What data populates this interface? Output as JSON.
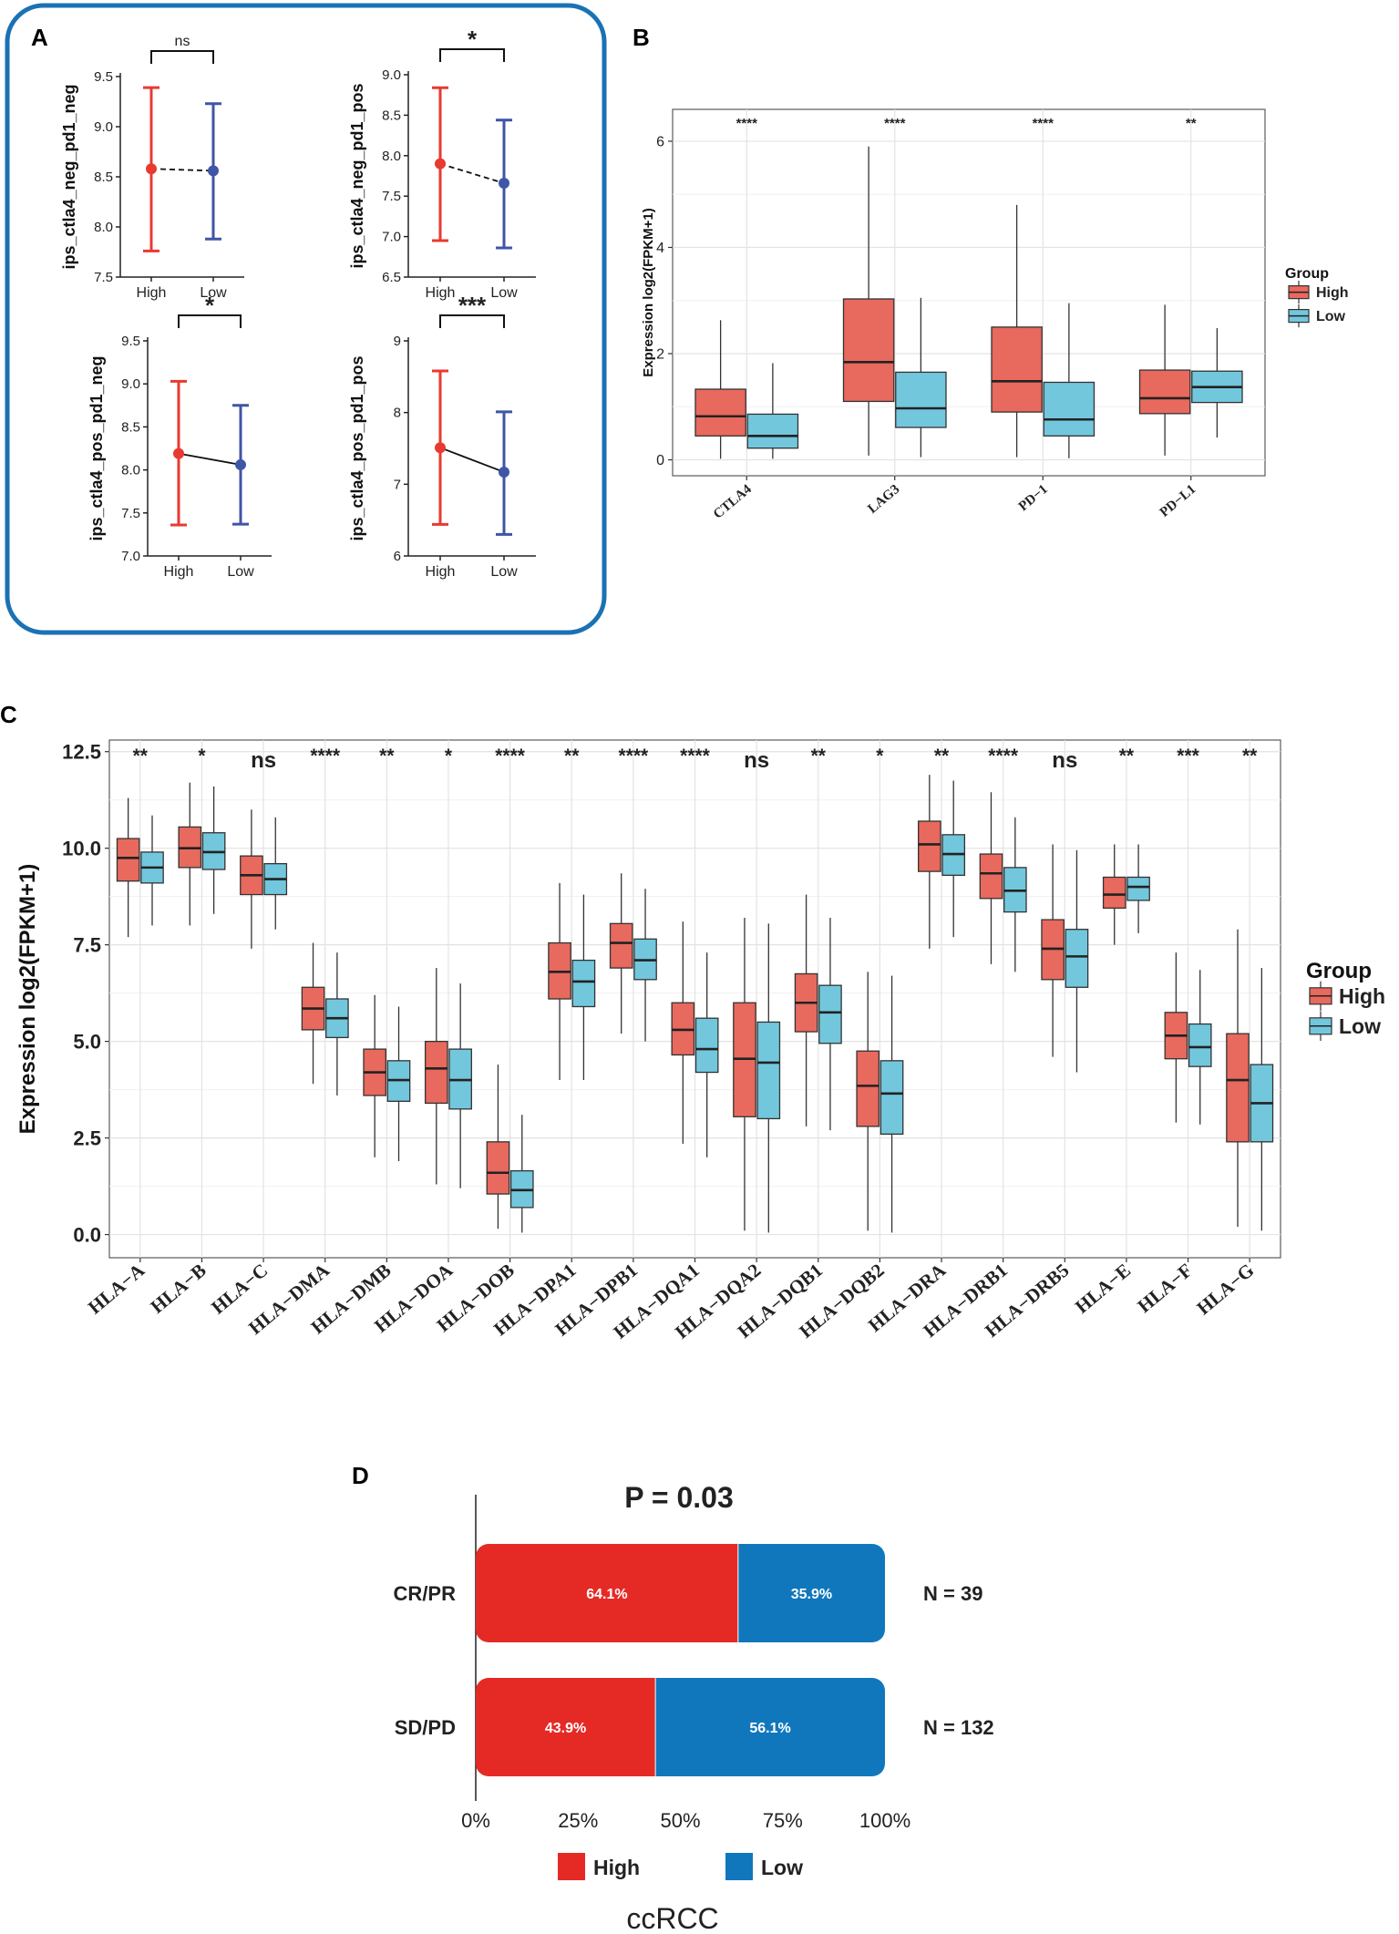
{
  "panel_labels": {
    "a": "A",
    "b": "B",
    "c": "C",
    "d": "D"
  },
  "colors": {
    "high": "#E8695D",
    "low": "#72C7DD",
    "panelA_high": "#E83A30",
    "panelA_low": "#3F55A6",
    "frame": "#1A72B4",
    "panelD_high": "#E52A26",
    "panelD_low": "#1177BC"
  },
  "chart_data": [
    {
      "id": "A1",
      "type": "errorbar",
      "ylabel": "ips_ctla4_neg_pd1_neg",
      "categories": [
        "High",
        "Low"
      ],
      "ylim": [
        7.5,
        9.5
      ],
      "yticks": [
        "7.5",
        "8.0",
        "8.5",
        "9.0",
        "9.5"
      ],
      "means": [
        8.58,
        8.56
      ],
      "lower": [
        7.76,
        7.88
      ],
      "upper": [
        9.39,
        9.23
      ],
      "line_style": "dashed",
      "significance": "ns"
    },
    {
      "id": "A2",
      "type": "errorbar",
      "ylabel": "ips_ctla4_neg_pd1_pos",
      "categories": [
        "High",
        "Low"
      ],
      "ylim": [
        6.5,
        9.0
      ],
      "yticks": [
        "6.5",
        "7.0",
        "7.5",
        "8.0",
        "8.5",
        "9.0"
      ],
      "means": [
        7.9,
        7.66
      ],
      "lower": [
        6.95,
        6.86
      ],
      "upper": [
        8.84,
        8.44
      ],
      "line_style": "dashed",
      "significance": "*"
    },
    {
      "id": "A3",
      "type": "errorbar",
      "ylabel": "ips_ctla4_pos_pd1_neg",
      "categories": [
        "High",
        "Low"
      ],
      "ylim": [
        7.0,
        9.5
      ],
      "yticks": [
        "7.0",
        "7.5",
        "8.0",
        "8.5",
        "9.0",
        "9.5"
      ],
      "means": [
        8.19,
        8.06
      ],
      "lower": [
        7.36,
        7.37
      ],
      "upper": [
        9.03,
        8.75
      ],
      "line_style": "solid",
      "significance": "*"
    },
    {
      "id": "A4",
      "type": "errorbar",
      "ylabel": "ips_ctla4_pos_pd1_pos",
      "categories": [
        "High",
        "Low"
      ],
      "ylim": [
        6,
        9
      ],
      "yticks": [
        "6",
        "7",
        "8",
        "9"
      ],
      "means": [
        7.51,
        7.17
      ],
      "lower": [
        6.44,
        6.3
      ],
      "upper": [
        8.58,
        8.01
      ],
      "line_style": "solid",
      "significance": "***"
    },
    {
      "id": "B",
      "type": "boxplot",
      "ylabel": "Expression log2(FPKM+1)",
      "ylim": [
        -0.3,
        6.6
      ],
      "yticks": [
        "0",
        "2",
        "4",
        "6"
      ],
      "legend_title": "Group",
      "legend": [
        "High",
        "Low"
      ],
      "categories": [
        "CTLA4",
        "LAG3",
        "PD−1",
        "PD−L1"
      ],
      "significance": [
        "****",
        "****",
        "****",
        "**"
      ],
      "high": [
        [
          0.02,
          0.45,
          0.82,
          1.33,
          2.63
        ],
        [
          0.08,
          1.1,
          1.84,
          3.03,
          5.9
        ],
        [
          0.05,
          0.9,
          1.48,
          2.5,
          4.8
        ],
        [
          0.08,
          0.87,
          1.16,
          1.69,
          2.92
        ]
      ],
      "low": [
        [
          0.02,
          0.22,
          0.45,
          0.86,
          1.82
        ],
        [
          0.05,
          0.61,
          0.97,
          1.65,
          3.05
        ],
        [
          0.03,
          0.45,
          0.76,
          1.46,
          2.95
        ],
        [
          0.42,
          1.08,
          1.37,
          1.67,
          2.48
        ]
      ]
    },
    {
      "id": "C",
      "type": "boxplot",
      "ylabel": "Expression log2(FPKM+1)",
      "ylim": [
        -0.6,
        12.8
      ],
      "yticks": [
        "0.0",
        "2.5",
        "5.0",
        "7.5",
        "10.0",
        "12.5"
      ],
      "legend_title": "Group",
      "legend": [
        "High",
        "Low"
      ],
      "categories": [
        "HLA−A",
        "HLA−B",
        "HLA−C",
        "HLA−DMA",
        "HLA−DMB",
        "HLA−DOA",
        "HLA−DOB",
        "HLA−DPA1",
        "HLA−DPB1",
        "HLA−DQA1",
        "HLA−DQA2",
        "HLA−DQB1",
        "HLA−DQB2",
        "HLA−DRA",
        "HLA−DRB1",
        "HLA−DRB5",
        "HLA−E",
        "HLA−F",
        "HLA−G"
      ],
      "significance": [
        "**",
        "*",
        "ns",
        "****",
        "**",
        "*",
        "****",
        "**",
        "****",
        "****",
        "ns",
        "**",
        "*",
        "**",
        "****",
        "ns",
        "**",
        "***",
        "**"
      ],
      "high": [
        [
          7.7,
          9.15,
          9.75,
          10.25,
          11.3
        ],
        [
          8.0,
          9.5,
          10.0,
          10.55,
          11.7
        ],
        [
          7.4,
          8.8,
          9.3,
          9.8,
          11.0
        ],
        [
          3.9,
          5.3,
          5.85,
          6.4,
          7.55
        ],
        [
          2.0,
          3.6,
          4.2,
          4.8,
          6.2
        ],
        [
          1.3,
          3.4,
          4.3,
          5.0,
          6.9
        ],
        [
          0.15,
          1.05,
          1.6,
          2.4,
          4.4
        ],
        [
          4.0,
          6.1,
          6.8,
          7.55,
          9.1
        ],
        [
          5.2,
          6.9,
          7.55,
          8.05,
          9.35
        ],
        [
          2.35,
          4.65,
          5.3,
          6.0,
          8.1
        ],
        [
          0.1,
          3.05,
          4.55,
          6.0,
          8.2
        ],
        [
          2.8,
          5.25,
          6.0,
          6.75,
          8.8
        ],
        [
          0.1,
          2.8,
          3.85,
          4.75,
          6.8
        ],
        [
          7.4,
          9.4,
          10.1,
          10.7,
          11.9
        ],
        [
          7.0,
          8.7,
          9.35,
          9.85,
          11.45
        ],
        [
          4.6,
          6.6,
          7.4,
          8.15,
          10.1
        ],
        [
          7.5,
          8.45,
          8.8,
          9.25,
          10.1
        ],
        [
          2.9,
          4.55,
          5.15,
          5.75,
          7.3
        ],
        [
          0.2,
          2.4,
          4.0,
          5.2,
          7.9
        ]
      ],
      "low": [
        [
          8.0,
          9.1,
          9.5,
          9.9,
          10.85
        ],
        [
          8.3,
          9.45,
          9.9,
          10.4,
          11.6
        ],
        [
          7.9,
          8.8,
          9.2,
          9.6,
          10.8
        ],
        [
          3.6,
          5.1,
          5.6,
          6.1,
          7.3
        ],
        [
          1.9,
          3.45,
          4.0,
          4.5,
          5.9
        ],
        [
          1.2,
          3.25,
          4.0,
          4.8,
          6.5
        ],
        [
          0.05,
          0.7,
          1.15,
          1.65,
          3.1
        ],
        [
          4.0,
          5.9,
          6.55,
          7.1,
          8.8
        ],
        [
          5.0,
          6.6,
          7.1,
          7.65,
          8.95
        ],
        [
          2.0,
          4.2,
          4.8,
          5.6,
          7.3
        ],
        [
          0.05,
          3.0,
          4.45,
          5.5,
          8.05
        ],
        [
          2.7,
          4.95,
          5.75,
          6.45,
          8.2
        ],
        [
          0.05,
          2.6,
          3.65,
          4.5,
          6.7
        ],
        [
          7.7,
          9.3,
          9.85,
          10.35,
          11.75
        ],
        [
          6.8,
          8.35,
          8.9,
          9.5,
          10.8
        ],
        [
          4.2,
          6.4,
          7.2,
          7.9,
          9.95
        ],
        [
          7.8,
          8.65,
          9.0,
          9.25,
          10.1
        ],
        [
          2.85,
          4.35,
          4.85,
          5.45,
          6.85
        ],
        [
          0.1,
          2.4,
          3.4,
          4.4,
          6.9
        ]
      ]
    },
    {
      "id": "D",
      "type": "stacked_bar_horizontal",
      "title": "P = 0.03",
      "xlabel": "ccRCC",
      "xticks": [
        "0%",
        "25%",
        "50%",
        "75%",
        "100%"
      ],
      "categories": [
        "CR/PR",
        "SD/PD"
      ],
      "n_labels": [
        "N = 39",
        "N = 132"
      ],
      "series": [
        {
          "name": "High",
          "values": [
            64.1,
            43.9
          ],
          "labels": [
            "64.1%",
            "43.9%"
          ]
        },
        {
          "name": "Low",
          "values": [
            35.9,
            56.1
          ],
          "labels": [
            "35.9%",
            "56.1%"
          ]
        }
      ],
      "legend": [
        "High",
        "Low"
      ]
    }
  ]
}
